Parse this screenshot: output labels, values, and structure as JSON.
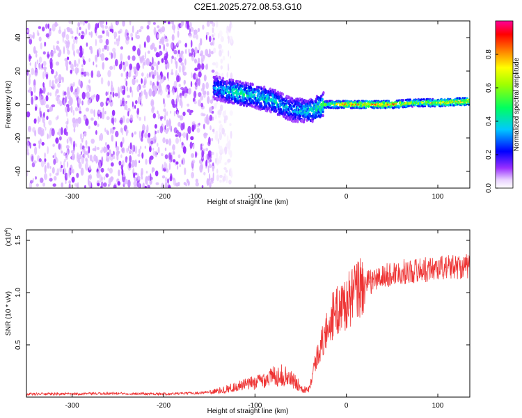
{
  "title": "C2E1.2025.272.08.53.G10",
  "chart_data": [
    {
      "type": "heatmap",
      "name": "spectrogram",
      "xlabel": "Height of straight line (km)",
      "ylabel": "Frequency (Hz)",
      "xlim": [
        -350,
        135
      ],
      "ylim": [
        -50,
        50
      ],
      "xticks": [
        -300,
        -200,
        -100,
        0,
        100
      ],
      "yticks": [
        -40,
        -20,
        0,
        20,
        40
      ],
      "colorbar": {
        "label": "Normalized spectral amplitude",
        "range": [
          0,
          1
        ],
        "ticks": [
          0.0,
          0.2,
          0.4,
          0.6,
          0.8
        ],
        "colormap": [
          "#ffffff",
          "#d9b3ff",
          "#7a00ff",
          "#0000ff",
          "#00ffff",
          "#00ff00",
          "#ffff00",
          "#ff8000",
          "#ff0000",
          "#ff00aa"
        ]
      },
      "noise_region_x": [
        -350,
        -145
      ],
      "signal_track": [
        {
          "x": -145,
          "f": 10,
          "amp": 0.35
        },
        {
          "x": -120,
          "f": 7,
          "amp": 0.5
        },
        {
          "x": -100,
          "f": 5,
          "amp": 0.45
        },
        {
          "x": -80,
          "f": 2,
          "amp": 0.45
        },
        {
          "x": -60,
          "f": -3,
          "amp": 0.4
        },
        {
          "x": -40,
          "f": -4,
          "amp": 0.45
        },
        {
          "x": -25,
          "f": 0,
          "amp": 0.6
        },
        {
          "x": 0,
          "f": 0,
          "amp": 0.9
        },
        {
          "x": 50,
          "f": 0,
          "amp": 0.9
        },
        {
          "x": 75,
          "f": 1,
          "amp": 0.7
        },
        {
          "x": 100,
          "f": 1,
          "amp": 0.85
        },
        {
          "x": 135,
          "f": 2,
          "amp": 0.85
        }
      ]
    },
    {
      "type": "line",
      "name": "snr",
      "xlabel": "Height of straight line (km)",
      "ylabel": "SNR (10 * v/v)",
      "yscale_label": "(x10",
      "yscale_exp": "4",
      "yscale_suffix": ")",
      "xlim": [
        -350,
        135
      ],
      "ylim": [
        0,
        1.6
      ],
      "xticks": [
        -300,
        -200,
        -100,
        0,
        100
      ],
      "yticks": [
        0.5,
        1.0,
        1.5
      ],
      "color": "#ee3333",
      "x": [
        -350,
        -300,
        -250,
        -200,
        -160,
        -140,
        -120,
        -100,
        -90,
        -80,
        -70,
        -60,
        -50,
        -45,
        -40,
        -35,
        -30,
        -25,
        -20,
        -15,
        -10,
        -5,
        0,
        5,
        10,
        15,
        20,
        30,
        40,
        50,
        60,
        70,
        80,
        90,
        100,
        110,
        120,
        135
      ],
      "y": [
        0.03,
        0.03,
        0.035,
        0.03,
        0.04,
        0.06,
        0.1,
        0.14,
        0.17,
        0.2,
        0.21,
        0.17,
        0.1,
        0.07,
        0.1,
        0.3,
        0.45,
        0.55,
        0.68,
        0.78,
        0.82,
        0.88,
        0.9,
        0.95,
        1.0,
        1.05,
        1.08,
        1.12,
        1.15,
        1.18,
        1.2,
        1.2,
        1.22,
        1.22,
        1.24,
        1.24,
        1.25,
        1.25
      ]
    }
  ]
}
